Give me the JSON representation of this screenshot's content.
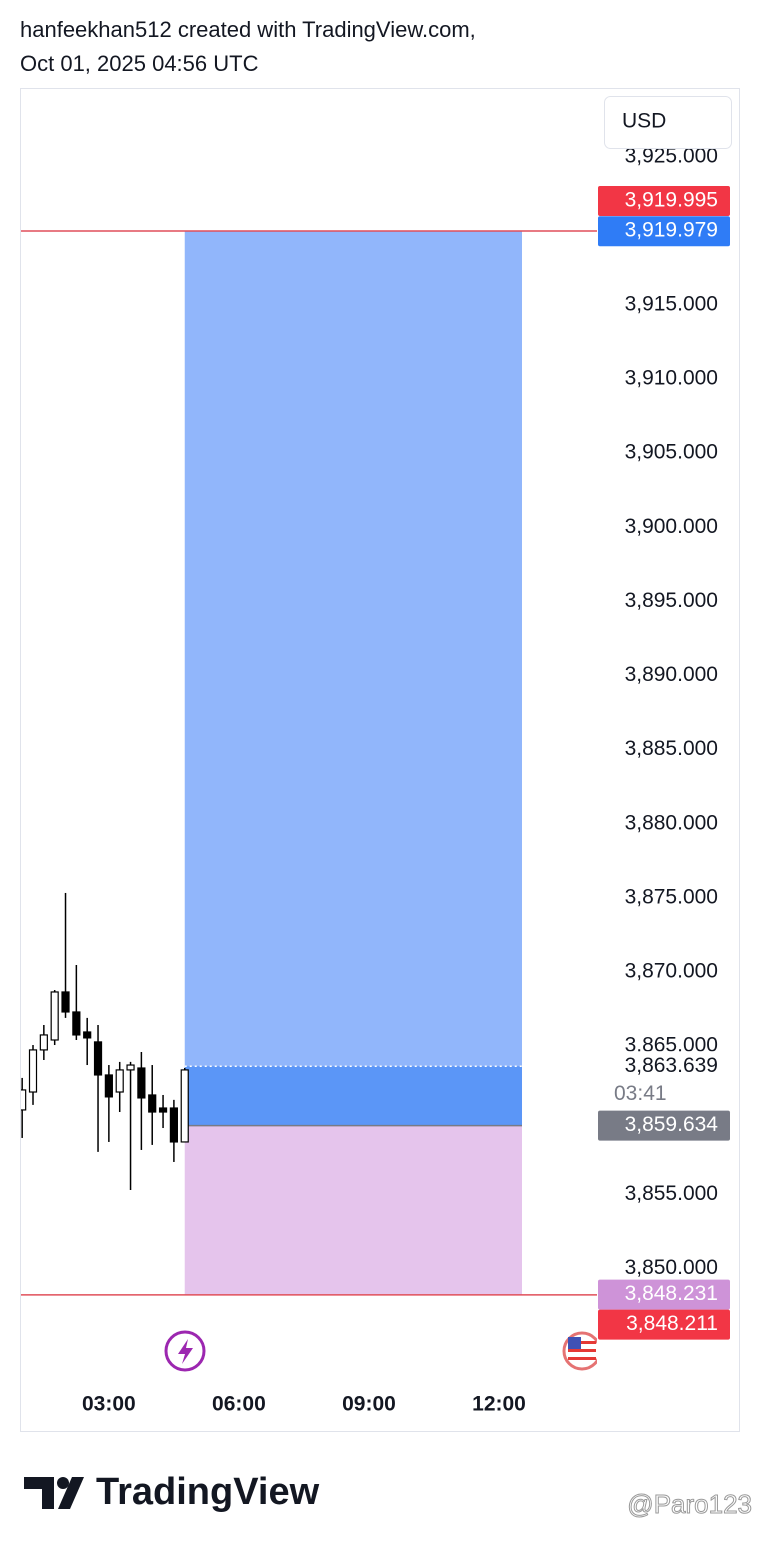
{
  "header": {
    "line1": "hanfeekhan512 created with TradingView.com,",
    "line2": "Oct 01, 2025 04:56 UTC"
  },
  "currency": "USD",
  "chart_data": {
    "type": "candlestick",
    "x": [
      1,
      1.25,
      1.5,
      1.75,
      2,
      2.25,
      2.5,
      2.75,
      3,
      3.25,
      3.5,
      3.75,
      4,
      4.25,
      4.5,
      4.75
    ],
    "open": [
      3860.69,
      3861.9,
      3864.74,
      3865.41,
      3868.65,
      3867.3,
      3865.95,
      3865.28,
      3863.05,
      3861.9,
      3863.39,
      3863.52,
      3861.7,
      3860.82,
      3860.82,
      3858.53
    ],
    "high": [
      3862.85,
      3865.07,
      3866.42,
      3868.78,
      3875.33,
      3870.47,
      3866.9,
      3866.42,
      3863.72,
      3863.93,
      3863.93,
      3864.6,
      3863.72,
      3861.7,
      3861.37,
      3863.52
    ],
    "low": [
      3858.8,
      3861.03,
      3864.06,
      3865.07,
      3866.9,
      3865.41,
      3863.72,
      3857.86,
      3858.53,
      3860.55,
      3855.29,
      3857.99,
      3858.33,
      3859.47,
      3857.18,
      3858.53
    ],
    "close": [
      3862.04,
      3864.74,
      3865.75,
      3868.65,
      3867.3,
      3865.75,
      3865.55,
      3863.05,
      3861.57,
      3863.39,
      3863.72,
      3861.5,
      3860.55,
      3860.55,
      3858.53,
      3863.39
    ],
    "up_color": "#ffffff",
    "down_color": "#000000",
    "xlim": [
      0.95,
      14.26
    ],
    "xticks": [
      {
        "value": 3,
        "label": "03:00"
      },
      {
        "value": 6,
        "label": "06:00"
      },
      {
        "value": 9,
        "label": "09:00"
      },
      {
        "value": 12,
        "label": "12:00"
      }
    ],
    "ylim": [
      3846.18,
      3929.64
    ],
    "yticks": [
      {
        "value": 3850,
        "label": "3,850.000"
      },
      {
        "value": 3855,
        "label": "3,855.000"
      },
      {
        "value": 3865,
        "label": "3,865.000"
      },
      {
        "value": 3870,
        "label": "3,870.000"
      },
      {
        "value": 3875,
        "label": "3,875.000"
      },
      {
        "value": 3880,
        "label": "3,880.000"
      },
      {
        "value": 3885,
        "label": "3,885.000"
      },
      {
        "value": 3890,
        "label": "3,890.000"
      },
      {
        "value": 3895,
        "label": "3,895.000"
      },
      {
        "value": 3900,
        "label": "3,900.000"
      },
      {
        "value": 3905,
        "label": "3,905.000"
      },
      {
        "value": 3910,
        "label": "3,910.000"
      },
      {
        "value": 3915,
        "label": "3,915.000"
      },
      {
        "value": 3925,
        "label": "3,925.000"
      }
    ],
    "position": {
      "start": 4.75,
      "end": 12.53,
      "target": 3919.979,
      "entry": 3859.634,
      "current": 3863.639,
      "stop": 3848.231,
      "target_color": "#91b6fb",
      "moved_color": "#5b96f7",
      "stop_color": "#e5c4ec"
    },
    "alert_lines": [
      3919.995,
      3848.211
    ],
    "alert_color": "#e04f5a",
    "price_labels": [
      {
        "value": 3919.995,
        "label": "3,919.995",
        "color": "#f23645"
      },
      {
        "value": 3919.979,
        "label": "3,919.979",
        "color": "#2f7cf6"
      },
      {
        "value": 3863.639,
        "label": "3,863.639",
        "color": "#ffffff"
      },
      {
        "value": 3859.634,
        "label": "3,859.634",
        "color": "#787b86"
      },
      {
        "value": 3848.231,
        "label": "3,848.231",
        "color": "#ce93d8"
      },
      {
        "value": 3848.211,
        "label": "3,848.211",
        "color": "#f23645"
      }
    ],
    "countdown": "03:41"
  },
  "footer": {
    "logo": "TradingView",
    "watermark": "@Paro123"
  }
}
